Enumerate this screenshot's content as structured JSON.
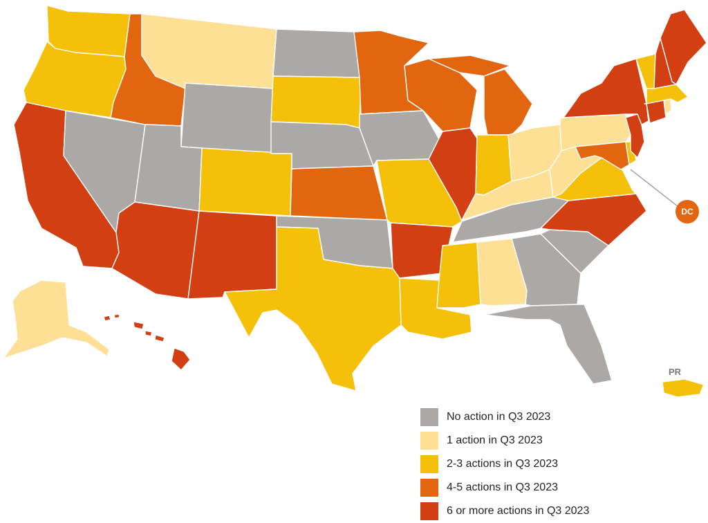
{
  "colors": {
    "none": "#aba8a6",
    "one": "#fddf95",
    "two_three": "#f4c00a",
    "four_five": "#e2660f",
    "six_plus": "#d13f13",
    "callout_line": "#9c9c9c",
    "legend_text": "#222222"
  },
  "legend": {
    "items": [
      {
        "key": "none",
        "label": "No action in Q3 2023"
      },
      {
        "key": "one",
        "label": "1 action in Q3 2023"
      },
      {
        "key": "two_three",
        "label": "2-3 actions in Q3 2023"
      },
      {
        "key": "four_five",
        "label": "4-5 actions in Q3 2023"
      },
      {
        "key": "six_plus",
        "label": "6 or more actions in Q3 2023"
      }
    ]
  },
  "labels": {
    "dc": "DC",
    "pr": "PR"
  },
  "states": {
    "WA": "two_three",
    "OR": "two_three",
    "CA": "six_plus",
    "NV": "none",
    "ID": "four_five",
    "MT": "one",
    "WY": "none",
    "UT": "none",
    "AZ": "six_plus",
    "CO": "two_three",
    "NM": "six_plus",
    "ND": "none",
    "SD": "two_three",
    "NE": "none",
    "KS": "four_five",
    "OK": "none",
    "TX": "two_three",
    "MN": "four_five",
    "IA": "none",
    "MO": "two_three",
    "AR": "six_plus",
    "LA": "two_three",
    "WI": "four_five",
    "IL": "six_plus",
    "MI": "four_five",
    "IN": "two_three",
    "OH": "one",
    "KY": "one",
    "TN": "none",
    "MS": "two_three",
    "AL": "one",
    "GA": "none",
    "FL": "none",
    "SC": "none",
    "NC": "six_plus",
    "VA": "two_three",
    "WV": "one",
    "MD": "four_five",
    "DE": "two_three",
    "NJ": "six_plus",
    "PA": "one",
    "NY": "six_plus",
    "CT": "six_plus",
    "RI": "one",
    "MA": "two_three",
    "VT": "two_three",
    "NH": "six_plus",
    "ME": "six_plus",
    "AK": "one",
    "HI": "six_plus",
    "DC": "four_five",
    "PR": "two_three"
  }
}
